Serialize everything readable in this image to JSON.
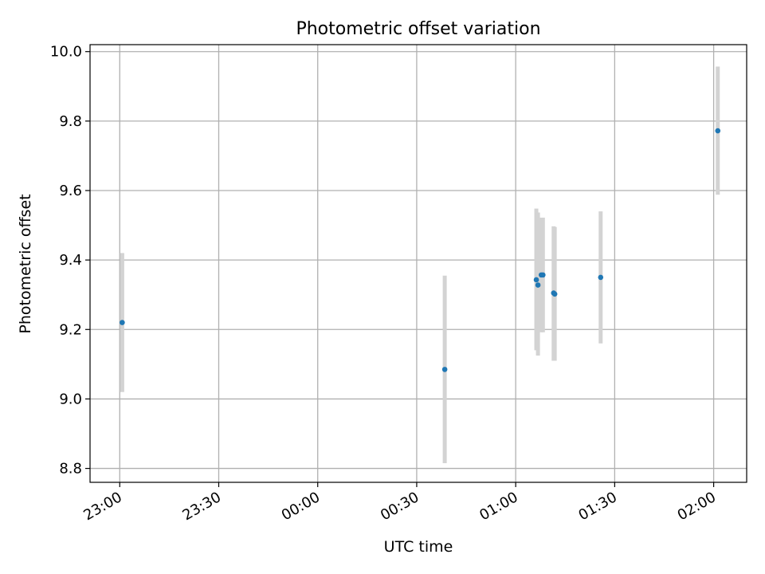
{
  "chart_data": {
    "type": "scatter",
    "title": "Photometric offset variation",
    "xlabel": "UTC time",
    "ylabel": "Photometric offset",
    "x_axis_kind": "time (UTC)",
    "x_range": [
      "22:51",
      "02:10"
    ],
    "ylim": [
      8.76,
      10.02
    ],
    "x_ticks": [
      "23:00",
      "23:30",
      "00:00",
      "00:30",
      "01:00",
      "01:30",
      "02:00"
    ],
    "y_ticks": [
      "8.8",
      "9.0",
      "9.2",
      "9.4",
      "9.6",
      "9.8",
      "10.0"
    ],
    "grid": true,
    "legend": "none",
    "colors": {
      "points": "#1f77b4",
      "errorbars": "#d3d3d3",
      "grid": "#b0b0b0"
    },
    "points": [
      {
        "time": "23:00:45",
        "value": 9.22,
        "lower": 9.02,
        "upper": 9.42
      },
      {
        "time": "00:38:30",
        "value": 9.085,
        "lower": 8.815,
        "upper": 9.355
      },
      {
        "time": "01:06:15",
        "value": 9.343,
        "lower": 9.14,
        "upper": 9.548
      },
      {
        "time": "01:06:45",
        "value": 9.328,
        "lower": 9.125,
        "upper": 9.537
      },
      {
        "time": "01:07:45",
        "value": 9.357,
        "lower": 9.192,
        "upper": 9.522
      },
      {
        "time": "01:08:15",
        "value": 9.357,
        "lower": 9.192,
        "upper": 9.522
      },
      {
        "time": "01:11:30",
        "value": 9.305,
        "lower": 9.11,
        "upper": 9.497
      },
      {
        "time": "01:11:50",
        "value": 9.302,
        "lower": 9.11,
        "upper": 9.495
      },
      {
        "time": "01:25:45",
        "value": 9.35,
        "lower": 9.16,
        "upper": 9.54
      },
      {
        "time": "02:01:15",
        "value": 9.772,
        "lower": 9.588,
        "upper": 9.957
      }
    ]
  }
}
